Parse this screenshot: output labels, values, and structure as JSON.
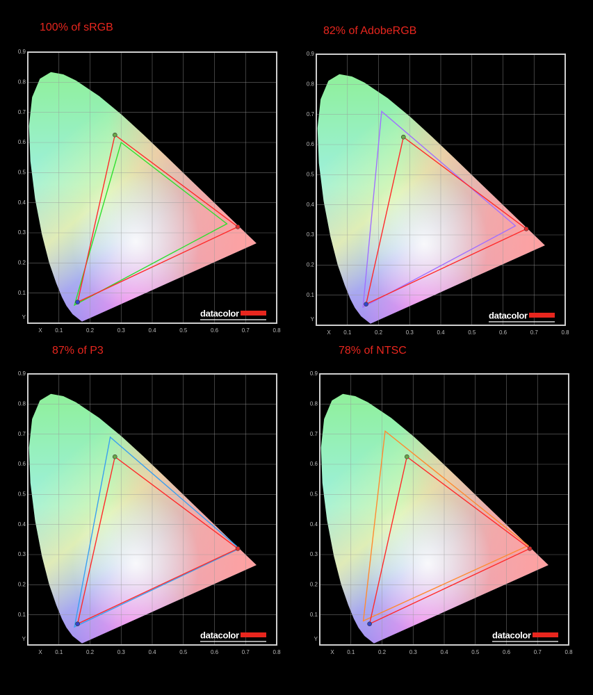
{
  "chart_data": [
    {
      "type": "gamut",
      "title": "100% of sRGB",
      "xlabel": "X",
      "ylabel": "Y",
      "brand": "datacolor",
      "xlim": [
        0,
        0.8
      ],
      "ylim": [
        0,
        0.9
      ],
      "xticks": [
        0.1,
        0.2,
        0.3,
        0.4,
        0.5,
        0.6,
        0.7,
        0.8
      ],
      "yticks": [
        0.1,
        0.2,
        0.3,
        0.4,
        0.5,
        0.6,
        0.7,
        0.8,
        0.9
      ],
      "grid": true,
      "marker_colors": [
        "#e03030",
        "#6aa848",
        "#3344cc"
      ],
      "series": [
        {
          "color": "#ff2a2a",
          "x": [
            0.675,
            0.28,
            0.16
          ],
          "y": [
            0.32,
            0.625,
            0.07
          ]
        },
        {
          "color": "#2ee02e",
          "x": [
            0.64,
            0.3,
            0.15
          ],
          "y": [
            0.33,
            0.6,
            0.06
          ]
        }
      ]
    },
    {
      "type": "gamut",
      "title": "82% of AdobeRGB",
      "xlabel": "X",
      "ylabel": "Y",
      "brand": "datacolor",
      "xlim": [
        0,
        0.8
      ],
      "ylim": [
        0,
        0.9
      ],
      "xticks": [
        0.1,
        0.2,
        0.3,
        0.4,
        0.5,
        0.6,
        0.7,
        0.8
      ],
      "yticks": [
        0.1,
        0.2,
        0.3,
        0.4,
        0.5,
        0.6,
        0.7,
        0.8,
        0.9
      ],
      "grid": true,
      "marker_colors": [
        "#e03030",
        "#6aa848",
        "#3344cc"
      ],
      "series": [
        {
          "color": "#ff2a2a",
          "x": [
            0.675,
            0.28,
            0.16
          ],
          "y": [
            0.32,
            0.625,
            0.07
          ]
        },
        {
          "color": "#a070ff",
          "x": [
            0.64,
            0.21,
            0.15
          ],
          "y": [
            0.33,
            0.71,
            0.06
          ]
        }
      ]
    },
    {
      "type": "gamut",
      "title": "87% of P3",
      "xlabel": "X",
      "ylabel": "Y",
      "brand": "datacolor",
      "xlim": [
        0,
        0.8
      ],
      "ylim": [
        0,
        0.9
      ],
      "xticks": [
        0.1,
        0.2,
        0.3,
        0.4,
        0.5,
        0.6,
        0.7,
        0.8
      ],
      "yticks": [
        0.1,
        0.2,
        0.3,
        0.4,
        0.5,
        0.6,
        0.7,
        0.8,
        0.9
      ],
      "grid": true,
      "marker_colors": [
        "#e03030",
        "#6aa848",
        "#3344cc"
      ],
      "series": [
        {
          "color": "#ff2a2a",
          "x": [
            0.675,
            0.28,
            0.16
          ],
          "y": [
            0.32,
            0.625,
            0.07
          ]
        },
        {
          "color": "#3aa0f0",
          "x": [
            0.68,
            0.265,
            0.15
          ],
          "y": [
            0.32,
            0.69,
            0.06
          ]
        }
      ]
    },
    {
      "type": "gamut",
      "title": "78% of NTSC",
      "xlabel": "X",
      "ylabel": "Y",
      "brand": "datacolor",
      "xlim": [
        0,
        0.8
      ],
      "ylim": [
        0,
        0.9
      ],
      "xticks": [
        0.1,
        0.2,
        0.3,
        0.4,
        0.5,
        0.6,
        0.7,
        0.8
      ],
      "yticks": [
        0.1,
        0.2,
        0.3,
        0.4,
        0.5,
        0.6,
        0.7,
        0.8,
        0.9
      ],
      "grid": true,
      "marker_colors": [
        "#e03030",
        "#6aa848",
        "#3344cc"
      ],
      "series": [
        {
          "color": "#ff2a2a",
          "x": [
            0.675,
            0.28,
            0.16
          ],
          "y": [
            0.32,
            0.625,
            0.07
          ]
        },
        {
          "color": "#ff8a30",
          "x": [
            0.67,
            0.21,
            0.14
          ],
          "y": [
            0.33,
            0.71,
            0.08
          ]
        }
      ]
    }
  ]
}
